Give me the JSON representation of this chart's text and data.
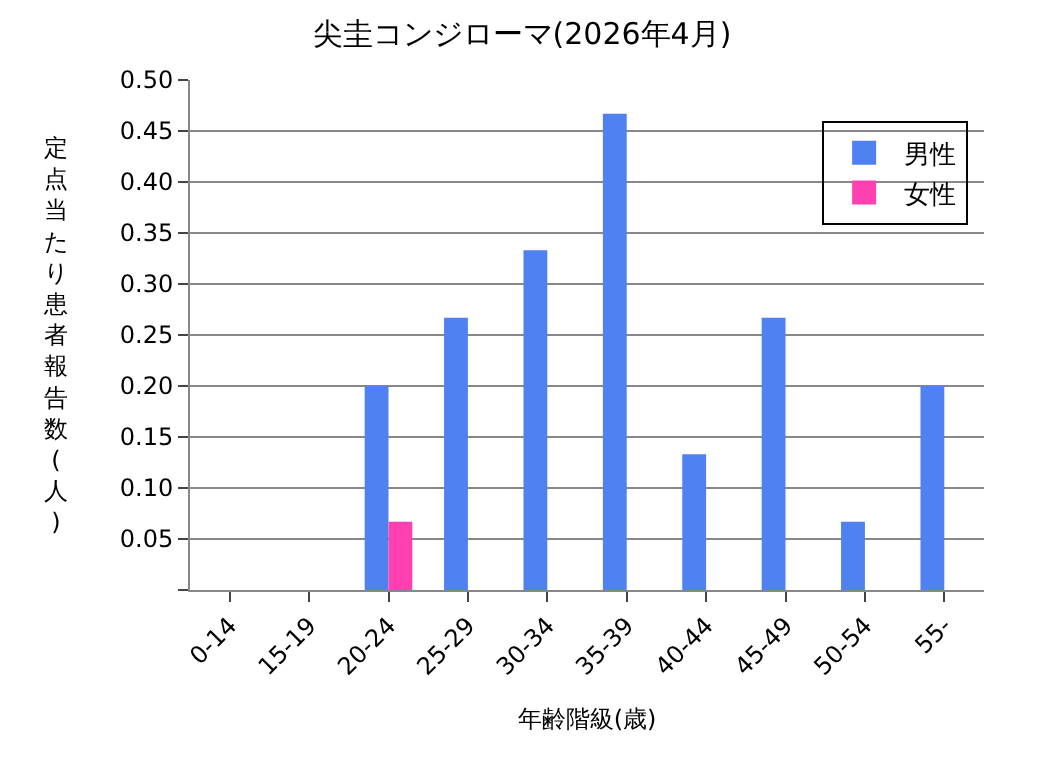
{
  "chart_data": {
    "type": "bar",
    "title": "尖圭コンジローマ(2026年4月)",
    "xlabel": "年齢階級(歳)",
    "ylabel": "定点当たり患者報告数(人)",
    "categories": [
      "0-14",
      "15-19",
      "20-24",
      "25-29",
      "30-34",
      "35-39",
      "40-44",
      "45-49",
      "50-54",
      "55-"
    ],
    "series": [
      {
        "name": "男性",
        "color": "#4f81f0",
        "values": [
          null,
          null,
          0.2,
          0.267,
          0.333,
          0.467,
          0.133,
          0.267,
          0.067,
          0.2
        ]
      },
      {
        "name": "女性",
        "color": "#ff40b0",
        "values": [
          null,
          null,
          0.067,
          null,
          null,
          null,
          null,
          null,
          null,
          null
        ]
      }
    ],
    "ylim": [
      0,
      0.5
    ],
    "yticks": [
      {
        "value": 0,
        "label": null
      },
      {
        "value": 0.05,
        "label": "0.05"
      },
      {
        "value": 0.1,
        "label": "0.10"
      },
      {
        "value": 0.15,
        "label": "0.15"
      },
      {
        "value": 0.2,
        "label": "0.20"
      },
      {
        "value": 0.25,
        "label": "0.25"
      },
      {
        "value": 0.3,
        "label": "0.30"
      },
      {
        "value": 0.35,
        "label": "0.35"
      },
      {
        "value": 0.4,
        "label": "0.40"
      },
      {
        "value": 0.45,
        "label": "0.45"
      },
      {
        "value": 0.5,
        "label": "0.50"
      }
    ],
    "grid": "y",
    "legend": "top right"
  }
}
